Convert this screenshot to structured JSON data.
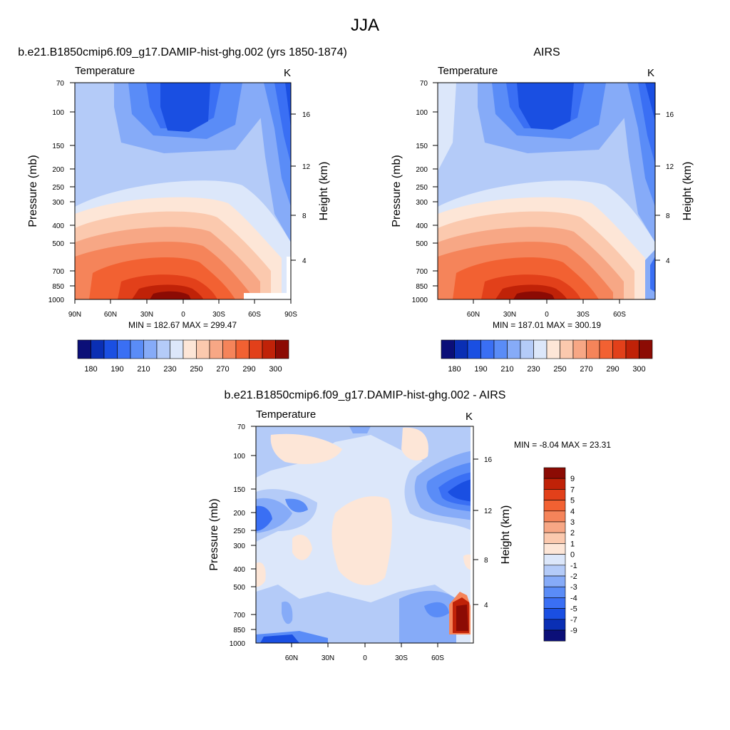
{
  "page_title": "JJA",
  "colors": {
    "temp_cmap": [
      "#0b0f78",
      "#0a2fb4",
      "#1a4fe2",
      "#3a6ff4",
      "#5a8cf7",
      "#86abf8",
      "#b4cbf8",
      "#dce7fa",
      "#fde6d7",
      "#fbc9ae",
      "#f7a785",
      "#f5845a",
      "#f26132",
      "#e2401a",
      "#c02208",
      "#8c0b04"
    ],
    "diff_cmap": [
      "#0b0f78",
      "#0a2fb4",
      "#1a4fe2",
      "#3a6ff4",
      "#5a8cf7",
      "#86abf8",
      "#b4cbf8",
      "#dce7fa",
      "#fde6d7",
      "#fbc9ae",
      "#f7a785",
      "#f5845a",
      "#f26132",
      "#e2401a",
      "#c02208",
      "#8c0b04"
    ]
  },
  "chart_data": [
    {
      "type": "heatmap",
      "title": "b.e21.B1850cmip6.f09_g17.DAMIP-hist-ghg.002 (yrs 1850-1874)",
      "subtitle_left": "Temperature",
      "subtitle_right": "K",
      "ylabel": "Pressure (mb)",
      "ylabel_right": "Height (km)",
      "yticks": [
        "70",
        "100",
        "150",
        "200",
        "250",
        "300",
        "400",
        "500",
        "700",
        "850",
        "1000"
      ],
      "yticks_right": [
        "16",
        "12",
        "8",
        "4"
      ],
      "xticks": [
        "90N",
        "60N",
        "30N",
        "0",
        "30S",
        "60S",
        "90S"
      ],
      "stats": "MIN = 182.67  MAX = 299.47",
      "min": 182.67,
      "max": 299.47,
      "colorbar_labels": [
        "180",
        "190",
        "210",
        "230",
        "250",
        "270",
        "290",
        "300"
      ]
    },
    {
      "type": "heatmap",
      "title": "AIRS",
      "subtitle_left": "Temperature",
      "subtitle_right": "K",
      "ylabel": "Pressure (mb)",
      "ylabel_right": "Height (km)",
      "yticks": [
        "70",
        "100",
        "150",
        "200",
        "250",
        "300",
        "400",
        "500",
        "700",
        "850",
        "1000"
      ],
      "yticks_right": [
        "16",
        "12",
        "8",
        "4"
      ],
      "xticks": [
        "60N",
        "30N",
        "0",
        "30S",
        "60S"
      ],
      "stats": "MIN = 187.01  MAX = 300.19",
      "min": 187.01,
      "max": 300.19,
      "colorbar_labels": [
        "180",
        "190",
        "210",
        "230",
        "250",
        "270",
        "290",
        "300"
      ]
    },
    {
      "type": "heatmap",
      "title": "b.e21.B1850cmip6.f09_g17.DAMIP-hist-ghg.002 - AIRS",
      "subtitle_left": "Temperature",
      "subtitle_right": "K",
      "ylabel": "Pressure (mb)",
      "ylabel_right": "Height (km)",
      "yticks": [
        "70",
        "100",
        "150",
        "200",
        "250",
        "300",
        "400",
        "500",
        "700",
        "850",
        "1000"
      ],
      "yticks_right": [
        "16",
        "12",
        "8",
        "4"
      ],
      "xticks": [
        "60N",
        "30N",
        "0",
        "30S",
        "60S"
      ],
      "stats": "MIN =  -8.04  MAX =  23.31",
      "min": -8.04,
      "max": 23.31,
      "colorbar_labels": [
        "9",
        "7",
        "5",
        "4",
        "3",
        "2",
        "1",
        "0",
        "-1",
        "-2",
        "-3",
        "-4",
        "-5",
        "-7",
        "-9"
      ]
    }
  ]
}
